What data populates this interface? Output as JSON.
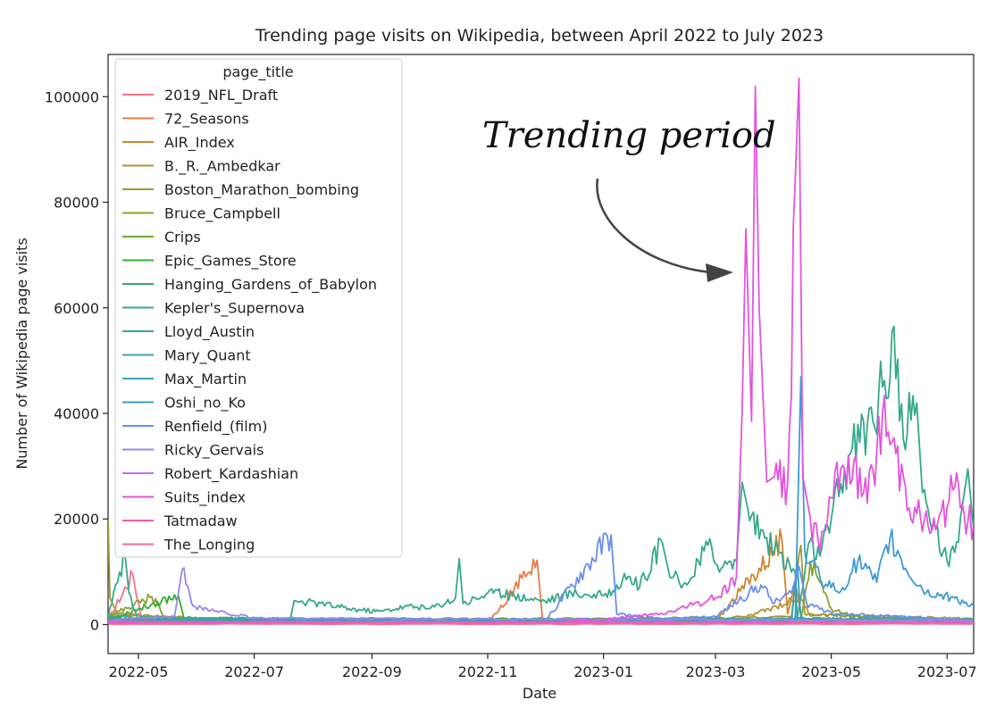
{
  "chart_data": {
    "type": "line",
    "title": "Trending page visits on Wikipedia, between April 2022 to July 2023",
    "xlabel": "Date",
    "ylabel": "Number of Wikipedia page visits",
    "legend_title": "page_title",
    "legend_position": "top-left",
    "annotation": "Trending period",
    "grid": false,
    "xlim": [
      "2022-04-15",
      "2023-07-15"
    ],
    "ylim": [
      -5500,
      108000
    ],
    "xticks": [
      {
        "date": "2022-05-01",
        "label": "2022-05"
      },
      {
        "date": "2022-07-01",
        "label": "2022-07"
      },
      {
        "date": "2022-09-01",
        "label": "2022-09"
      },
      {
        "date": "2022-11-01",
        "label": "2022-11"
      },
      {
        "date": "2023-01-01",
        "label": "2023-01"
      },
      {
        "date": "2023-03-01",
        "label": "2023-03"
      },
      {
        "date": "2023-05-01",
        "label": "2023-05"
      },
      {
        "date": "2023-07-01",
        "label": "2023-07"
      }
    ],
    "yticks": [
      0,
      20000,
      40000,
      60000,
      80000,
      100000
    ],
    "series": [
      {
        "name": "2019_NFL_Draft",
        "color": "#f77189",
        "points": [
          [
            "2022-04-15",
            800
          ],
          [
            "2022-04-28",
            9500
          ],
          [
            "2022-05-03",
            600
          ],
          [
            "2022-08-01",
            400
          ],
          [
            "2022-11-01",
            500
          ],
          [
            "2023-04-10",
            600
          ],
          [
            "2023-04-14",
            900
          ],
          [
            "2023-04-20",
            300
          ],
          [
            "2023-07-15",
            300
          ]
        ]
      },
      {
        "name": "72_Seasons",
        "color": "#ec7a4c",
        "points": [
          [
            "2022-04-15",
            300
          ],
          [
            "2022-11-01",
            300
          ],
          [
            "2022-11-27",
            12200
          ],
          [
            "2022-11-30",
            600
          ],
          [
            "2023-04-01",
            500
          ],
          [
            "2023-04-14",
            900
          ],
          [
            "2023-04-16",
            200
          ],
          [
            "2023-07-15",
            200
          ]
        ]
      },
      {
        "name": "AIR_Index",
        "color": "#d1852d",
        "points": [
          [
            "2022-04-15",
            800
          ],
          [
            "2022-06-01",
            600
          ],
          [
            "2022-10-01",
            500
          ],
          [
            "2023-03-01",
            500
          ],
          [
            "2023-04-05",
            16000
          ],
          [
            "2023-04-08",
            2000
          ],
          [
            "2023-04-12",
            8000
          ],
          [
            "2023-04-16",
            300
          ],
          [
            "2023-07-15",
            300
          ]
        ]
      },
      {
        "name": "B._R._Ambedkar",
        "color": "#b59330",
        "points": [
          [
            "2022-04-15",
            2000
          ],
          [
            "2022-06-01",
            1200
          ],
          [
            "2022-10-01",
            1000
          ],
          [
            "2023-03-15",
            1100
          ],
          [
            "2023-04-14",
            5000
          ],
          [
            "2023-04-20",
            2000
          ],
          [
            "2023-05-15",
            1500
          ],
          [
            "2023-07-15",
            1200
          ]
        ]
      },
      {
        "name": "Boston_Marathon_bombing",
        "color": "#a09b31",
        "points": [
          [
            "2022-04-15",
            20000
          ],
          [
            "2022-04-16",
            5000
          ],
          [
            "2022-04-20",
            2000
          ],
          [
            "2022-06-01",
            800
          ],
          [
            "2022-10-01",
            700
          ],
          [
            "2023-04-10",
            1500
          ],
          [
            "2023-04-15",
            15000
          ],
          [
            "2023-04-17",
            2000
          ],
          [
            "2023-07-15",
            700
          ]
        ]
      },
      {
        "name": "Bruce_Campbell",
        "color": "#8ba131",
        "points": [
          [
            "2022-04-15",
            1500
          ],
          [
            "2022-05-08",
            5300
          ],
          [
            "2022-05-15",
            1500
          ],
          [
            "2022-06-01",
            800
          ],
          [
            "2022-10-01",
            500
          ],
          [
            "2023-04-15",
            900
          ],
          [
            "2023-04-20",
            12000
          ],
          [
            "2023-05-01",
            3000
          ],
          [
            "2023-05-15",
            1500
          ],
          [
            "2023-07-15",
            800
          ]
        ]
      },
      {
        "name": "Crips",
        "color": "#6ca930",
        "points": [
          [
            "2022-04-15",
            1200
          ],
          [
            "2022-08-01",
            1100
          ],
          [
            "2022-12-01",
            1100
          ],
          [
            "2023-04-01",
            1000
          ],
          [
            "2023-07-15",
            900
          ]
        ]
      },
      {
        "name": "Epic_Games_Store",
        "color": "#35ae33",
        "points": [
          [
            "2022-04-15",
            1000
          ],
          [
            "2022-05-22",
            5500
          ],
          [
            "2022-05-25",
            1200
          ],
          [
            "2022-08-01",
            900
          ],
          [
            "2022-12-01",
            900
          ],
          [
            "2023-04-01",
            800
          ],
          [
            "2023-07-15",
            800
          ]
        ]
      },
      {
        "name": "Hanging_Gardens_of_Babylon",
        "color": "#33ab69",
        "points": [
          [
            "2022-04-15",
            1000
          ],
          [
            "2022-06-01",
            900
          ],
          [
            "2022-10-01",
            800
          ],
          [
            "2023-02-01",
            700
          ],
          [
            "2023-04-14",
            900
          ],
          [
            "2023-07-15",
            700
          ]
        ]
      },
      {
        "name": "Kepler's_Supernova",
        "color": "#35a98a",
        "points": [
          [
            "2022-04-15",
            1500
          ],
          [
            "2022-04-24",
            13000
          ],
          [
            "2022-04-26",
            6000
          ],
          [
            "2022-05-01",
            1000
          ],
          [
            "2022-07-20",
            1000
          ],
          [
            "2022-07-22",
            4500
          ],
          [
            "2022-08-05",
            4000
          ],
          [
            "2022-08-20",
            3000
          ],
          [
            "2022-09-05",
            2500
          ],
          [
            "2022-09-20",
            3500
          ],
          [
            "2022-10-01",
            3000
          ],
          [
            "2022-10-15",
            5000
          ],
          [
            "2022-10-17",
            12500
          ],
          [
            "2022-10-19",
            4000
          ],
          [
            "2022-11-01",
            6000
          ],
          [
            "2022-11-15",
            5500
          ],
          [
            "2022-12-01",
            4500
          ],
          [
            "2022-12-15",
            6000
          ],
          [
            "2023-01-01",
            5500
          ],
          [
            "2023-01-15",
            9000
          ],
          [
            "2023-01-20",
            7000
          ],
          [
            "2023-02-01",
            15500
          ],
          [
            "2023-02-05",
            9000
          ],
          [
            "2023-02-15",
            8000
          ],
          [
            "2023-02-25",
            15000
          ],
          [
            "2023-03-05",
            11000
          ],
          [
            "2023-03-12",
            12000
          ],
          [
            "2023-03-15",
            27000
          ],
          [
            "2023-03-18",
            22000
          ],
          [
            "2023-03-25",
            18000
          ],
          [
            "2023-04-01",
            14000
          ],
          [
            "2023-04-12",
            10000
          ],
          [
            "2023-04-13",
            1000
          ],
          [
            "2023-04-20",
            16000
          ],
          [
            "2023-04-25",
            13000
          ],
          [
            "2023-05-01",
            20000
          ],
          [
            "2023-05-10",
            32000
          ],
          [
            "2023-05-20",
            38000
          ],
          [
            "2023-05-28",
            45000
          ],
          [
            "2023-06-03",
            56500
          ],
          [
            "2023-06-08",
            35000
          ],
          [
            "2023-06-15",
            42000
          ],
          [
            "2023-06-18",
            25000
          ],
          [
            "2023-06-25",
            18000
          ],
          [
            "2023-07-02",
            11000
          ],
          [
            "2023-07-08",
            20000
          ],
          [
            "2023-07-12",
            29500
          ],
          [
            "2023-07-15",
            18000
          ]
        ]
      },
      {
        "name": "Lloyd_Austin",
        "color": "#36a6a0",
        "points": [
          [
            "2022-04-15",
            1500
          ],
          [
            "2022-06-01",
            1200
          ],
          [
            "2022-10-01",
            1000
          ],
          [
            "2023-02-01",
            1000
          ],
          [
            "2023-04-14",
            1200
          ],
          [
            "2023-07-15",
            1000
          ]
        ]
      },
      {
        "name": "Mary_Quant",
        "color": "#38a3b0",
        "points": [
          [
            "2022-04-15",
            300
          ],
          [
            "2023-04-10",
            300
          ],
          [
            "2023-04-13",
            12000
          ],
          [
            "2023-04-15",
            1000
          ],
          [
            "2023-05-01",
            400
          ],
          [
            "2023-07-15",
            300
          ]
        ]
      },
      {
        "name": "Max_Martin",
        "color": "#3aa0bf",
        "points": [
          [
            "2022-04-15",
            900
          ],
          [
            "2022-08-01",
            800
          ],
          [
            "2022-12-01",
            800
          ],
          [
            "2023-04-01",
            900
          ],
          [
            "2023-07-15",
            800
          ]
        ]
      },
      {
        "name": "Oshi_no_Ko",
        "color": "#3d9bd6",
        "points": [
          [
            "2022-04-15",
            400
          ],
          [
            "2023-03-01",
            500
          ],
          [
            "2023-04-12",
            1000
          ],
          [
            "2023-04-15",
            47000
          ],
          [
            "2023-04-17",
            14000
          ],
          [
            "2023-04-25",
            9000
          ],
          [
            "2023-05-05",
            6000
          ],
          [
            "2023-05-15",
            12000
          ],
          [
            "2023-05-25",
            8000
          ],
          [
            "2023-06-01",
            16500
          ],
          [
            "2023-06-10",
            10000
          ],
          [
            "2023-06-20",
            6000
          ],
          [
            "2023-07-05",
            5000
          ],
          [
            "2023-07-15",
            3500
          ]
        ]
      },
      {
        "name": "Renfield_(film)",
        "color": "#6a8ef0",
        "points": [
          [
            "2022-04-15",
            500
          ],
          [
            "2022-12-01",
            500
          ],
          [
            "2023-01-05",
            17000
          ],
          [
            "2023-01-08",
            2000
          ],
          [
            "2023-02-01",
            1000
          ],
          [
            "2023-03-01",
            1500
          ],
          [
            "2023-03-25",
            7500
          ],
          [
            "2023-04-01",
            4000
          ],
          [
            "2023-04-10",
            6000
          ],
          [
            "2023-04-14",
            11000
          ],
          [
            "2023-04-18",
            4000
          ],
          [
            "2023-05-05",
            2000
          ],
          [
            "2023-07-15",
            800
          ]
        ]
      },
      {
        "name": "Ricky_Gervais",
        "color": "#9d83f1",
        "points": [
          [
            "2022-04-15",
            800
          ],
          [
            "2022-05-20",
            1500
          ],
          [
            "2022-05-24",
            10400
          ],
          [
            "2022-05-30",
            3500
          ],
          [
            "2022-06-10",
            2500
          ],
          [
            "2022-07-01",
            1200
          ],
          [
            "2022-12-01",
            1000
          ],
          [
            "2023-07-15",
            800
          ]
        ]
      },
      {
        "name": "Robert_Kardashian",
        "color": "#c072f3",
        "points": [
          [
            "2022-04-15",
            500
          ],
          [
            "2023-04-01",
            500
          ],
          [
            "2023-07-15",
            500
          ]
        ]
      },
      {
        "name": "Suits_index",
        "color": "#e454de",
        "points": [
          [
            "2022-04-15",
            300
          ],
          [
            "2022-12-01",
            400
          ],
          [
            "2023-01-01",
            1000
          ],
          [
            "2023-02-01",
            2000
          ],
          [
            "2023-03-01",
            5000
          ],
          [
            "2023-03-12",
            9000
          ],
          [
            "2023-03-15",
            40000
          ],
          [
            "2023-03-17",
            75000
          ],
          [
            "2023-03-20",
            38500
          ],
          [
            "2023-03-22",
            102000
          ],
          [
            "2023-03-24",
            60000
          ],
          [
            "2023-03-28",
            27000
          ],
          [
            "2023-04-01",
            28000
          ],
          [
            "2023-04-08",
            27000
          ],
          [
            "2023-04-14",
            103500
          ],
          [
            "2023-04-16",
            28000
          ],
          [
            "2023-04-20",
            20000
          ],
          [
            "2023-04-25",
            14000
          ],
          [
            "2023-05-01",
            24000
          ],
          [
            "2023-05-10",
            32000
          ],
          [
            "2023-05-20",
            23000
          ],
          [
            "2023-05-28",
            40000
          ],
          [
            "2023-06-08",
            28000
          ],
          [
            "2023-06-15",
            21000
          ],
          [
            "2023-06-25",
            18000
          ],
          [
            "2023-07-05",
            26000
          ],
          [
            "2023-07-10",
            21000
          ],
          [
            "2023-07-15",
            19000
          ]
        ]
      },
      {
        "name": "Tatmadaw",
        "color": "#f15dab",
        "points": [
          [
            "2022-04-15",
            500
          ],
          [
            "2022-08-01",
            400
          ],
          [
            "2022-12-01",
            400
          ],
          [
            "2023-04-01",
            400
          ],
          [
            "2023-07-15",
            400
          ]
        ]
      },
      {
        "name": "The_Longing",
        "color": "#f56c90",
        "points": [
          [
            "2022-04-15",
            100
          ],
          [
            "2023-07-15",
            100
          ]
        ]
      }
    ]
  }
}
